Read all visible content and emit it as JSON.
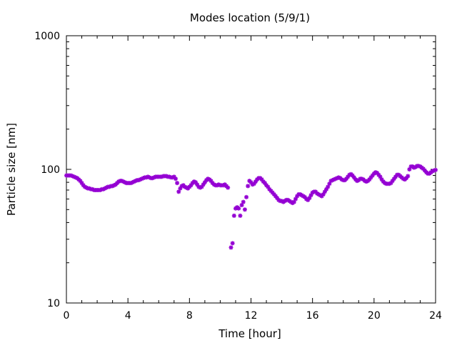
{
  "chart_data": {
    "type": "scatter",
    "title": "Modes location (5/9/1)",
    "xlabel": "Time [hour]",
    "ylabel": "Particle size [nm]",
    "xlim": [
      0,
      24
    ],
    "ylim": [
      10,
      1000
    ],
    "yscale": "log",
    "xticks": [
      "0",
      "4",
      "8",
      "12",
      "16",
      "20",
      "24"
    ],
    "yticks": [
      "10",
      "100",
      "1000"
    ],
    "grid": false,
    "marker_color": "#9400d3",
    "points": [
      [
        0.0,
        90
      ],
      [
        0.1,
        90
      ],
      [
        0.2,
        90
      ],
      [
        0.3,
        90
      ],
      [
        0.4,
        89
      ],
      [
        0.5,
        88
      ],
      [
        0.6,
        87
      ],
      [
        0.7,
        86
      ],
      [
        0.8,
        84
      ],
      [
        0.9,
        82
      ],
      [
        1.0,
        79
      ],
      [
        1.1,
        76
      ],
      [
        1.2,
        74
      ],
      [
        1.3,
        73
      ],
      [
        1.4,
        72
      ],
      [
        1.5,
        72
      ],
      [
        1.6,
        71
      ],
      [
        1.7,
        71
      ],
      [
        1.8,
        70
      ],
      [
        1.9,
        70
      ],
      [
        2.0,
        70
      ],
      [
        2.1,
        70
      ],
      [
        2.2,
        70
      ],
      [
        2.3,
        71
      ],
      [
        2.4,
        71
      ],
      [
        2.5,
        72
      ],
      [
        2.6,
        73
      ],
      [
        2.7,
        74
      ],
      [
        2.8,
        74
      ],
      [
        2.9,
        75
      ],
      [
        3.0,
        75
      ],
      [
        3.1,
        76
      ],
      [
        3.2,
        77
      ],
      [
        3.3,
        79
      ],
      [
        3.4,
        81
      ],
      [
        3.5,
        82
      ],
      [
        3.6,
        82
      ],
      [
        3.7,
        81
      ],
      [
        3.8,
        80
      ],
      [
        3.9,
        79
      ],
      [
        4.0,
        79
      ],
      [
        4.1,
        79
      ],
      [
        4.2,
        79
      ],
      [
        4.3,
        80
      ],
      [
        4.4,
        81
      ],
      [
        4.5,
        82
      ],
      [
        4.6,
        83
      ],
      [
        4.7,
        83
      ],
      [
        4.8,
        84
      ],
      [
        4.9,
        85
      ],
      [
        5.0,
        86
      ],
      [
        5.1,
        87
      ],
      [
        5.2,
        87
      ],
      [
        5.3,
        88
      ],
      [
        5.4,
        87
      ],
      [
        5.5,
        86
      ],
      [
        5.6,
        86
      ],
      [
        5.7,
        87
      ],
      [
        5.8,
        88
      ],
      [
        5.9,
        88
      ],
      [
        6.0,
        88
      ],
      [
        6.1,
        88
      ],
      [
        6.2,
        88
      ],
      [
        6.3,
        89
      ],
      [
        6.4,
        89
      ],
      [
        6.5,
        89
      ],
      [
        6.6,
        88
      ],
      [
        6.7,
        88
      ],
      [
        6.8,
        87
      ],
      [
        6.9,
        87
      ],
      [
        7.0,
        88
      ],
      [
        7.1,
        85
      ],
      [
        7.2,
        79
      ],
      [
        7.3,
        68
      ],
      [
        7.4,
        72
      ],
      [
        7.5,
        75
      ],
      [
        7.6,
        76
      ],
      [
        7.7,
        74
      ],
      [
        7.8,
        73
      ],
      [
        7.9,
        72
      ],
      [
        8.0,
        74
      ],
      [
        8.1,
        76
      ],
      [
        8.2,
        79
      ],
      [
        8.3,
        81
      ],
      [
        8.4,
        80
      ],
      [
        8.5,
        77
      ],
      [
        8.6,
        74
      ],
      [
        8.7,
        73
      ],
      [
        8.8,
        74
      ],
      [
        8.9,
        77
      ],
      [
        9.0,
        80
      ],
      [
        9.1,
        83
      ],
      [
        9.2,
        85
      ],
      [
        9.3,
        84
      ],
      [
        9.4,
        82
      ],
      [
        9.5,
        79
      ],
      [
        9.6,
        77
      ],
      [
        9.7,
        76
      ],
      [
        9.8,
        76
      ],
      [
        9.9,
        77
      ],
      [
        10.0,
        76
      ],
      [
        10.1,
        76
      ],
      [
        10.2,
        76
      ],
      [
        10.3,
        77
      ],
      [
        10.4,
        75
      ],
      [
        10.5,
        73
      ],
      [
        10.7,
        26
      ],
      [
        10.8,
        28
      ],
      [
        10.9,
        45
      ],
      [
        11.0,
        51
      ],
      [
        11.1,
        52
      ],
      [
        11.2,
        51
      ],
      [
        11.3,
        45
      ],
      [
        11.4,
        54
      ],
      [
        11.5,
        57
      ],
      [
        11.6,
        50
      ],
      [
        11.7,
        62
      ],
      [
        11.8,
        75
      ],
      [
        11.9,
        82
      ],
      [
        12.0,
        80
      ],
      [
        12.1,
        77
      ],
      [
        12.2,
        78
      ],
      [
        12.3,
        81
      ],
      [
        12.4,
        84
      ],
      [
        12.5,
        86
      ],
      [
        12.6,
        86
      ],
      [
        12.7,
        84
      ],
      [
        12.8,
        81
      ],
      [
        12.9,
        79
      ],
      [
        13.0,
        76
      ],
      [
        13.1,
        74
      ],
      [
        13.2,
        71
      ],
      [
        13.3,
        69
      ],
      [
        13.4,
        67
      ],
      [
        13.5,
        65
      ],
      [
        13.6,
        63
      ],
      [
        13.7,
        61
      ],
      [
        13.8,
        59
      ],
      [
        13.9,
        58
      ],
      [
        14.0,
        58
      ],
      [
        14.1,
        57
      ],
      [
        14.2,
        58
      ],
      [
        14.3,
        59
      ],
      [
        14.4,
        59
      ],
      [
        14.5,
        58
      ],
      [
        14.6,
        57
      ],
      [
        14.7,
        56
      ],
      [
        14.8,
        57
      ],
      [
        14.9,
        60
      ],
      [
        15.0,
        63
      ],
      [
        15.1,
        65
      ],
      [
        15.2,
        65
      ],
      [
        15.3,
        64
      ],
      [
        15.4,
        63
      ],
      [
        15.5,
        62
      ],
      [
        15.6,
        60
      ],
      [
        15.7,
        59
      ],
      [
        15.8,
        61
      ],
      [
        15.9,
        64
      ],
      [
        16.0,
        67
      ],
      [
        16.1,
        68
      ],
      [
        16.2,
        68
      ],
      [
        16.3,
        66
      ],
      [
        16.4,
        65
      ],
      [
        16.5,
        64
      ],
      [
        16.6,
        63
      ],
      [
        16.7,
        65
      ],
      [
        16.8,
        68
      ],
      [
        16.9,
        71
      ],
      [
        17.0,
        74
      ],
      [
        17.1,
        78
      ],
      [
        17.2,
        82
      ],
      [
        17.3,
        83
      ],
      [
        17.4,
        84
      ],
      [
        17.5,
        85
      ],
      [
        17.6,
        86
      ],
      [
        17.7,
        87
      ],
      [
        17.8,
        86
      ],
      [
        17.9,
        84
      ],
      [
        18.0,
        83
      ],
      [
        18.1,
        83
      ],
      [
        18.2,
        85
      ],
      [
        18.3,
        88
      ],
      [
        18.4,
        91
      ],
      [
        18.5,
        92
      ],
      [
        18.6,
        90
      ],
      [
        18.7,
        87
      ],
      [
        18.8,
        84
      ],
      [
        18.9,
        82
      ],
      [
        19.0,
        83
      ],
      [
        19.1,
        85
      ],
      [
        19.2,
        85
      ],
      [
        19.3,
        84
      ],
      [
        19.4,
        82
      ],
      [
        19.5,
        81
      ],
      [
        19.6,
        82
      ],
      [
        19.7,
        84
      ],
      [
        19.8,
        87
      ],
      [
        19.9,
        90
      ],
      [
        20.0,
        93
      ],
      [
        20.1,
        95
      ],
      [
        20.2,
        94
      ],
      [
        20.3,
        91
      ],
      [
        20.4,
        88
      ],
      [
        20.5,
        84
      ],
      [
        20.6,
        81
      ],
      [
        20.7,
        79
      ],
      [
        20.8,
        78
      ],
      [
        20.9,
        78
      ],
      [
        21.0,
        78
      ],
      [
        21.1,
        79
      ],
      [
        21.2,
        82
      ],
      [
        21.3,
        85
      ],
      [
        21.4,
        88
      ],
      [
        21.5,
        91
      ],
      [
        21.6,
        91
      ],
      [
        21.7,
        89
      ],
      [
        21.8,
        87
      ],
      [
        21.9,
        85
      ],
      [
        22.0,
        84
      ],
      [
        22.1,
        86
      ],
      [
        22.2,
        89
      ],
      [
        22.3,
        100
      ],
      [
        22.4,
        105
      ],
      [
        22.5,
        105
      ],
      [
        22.6,
        103
      ],
      [
        22.7,
        104
      ],
      [
        22.8,
        106
      ],
      [
        22.9,
        106
      ],
      [
        23.0,
        105
      ],
      [
        23.1,
        103
      ],
      [
        23.2,
        101
      ],
      [
        23.3,
        98
      ],
      [
        23.4,
        95
      ],
      [
        23.5,
        93
      ],
      [
        23.6,
        93
      ],
      [
        23.7,
        95
      ],
      [
        23.8,
        97
      ],
      [
        23.9,
        98
      ],
      [
        24.0,
        99
      ]
    ]
  }
}
